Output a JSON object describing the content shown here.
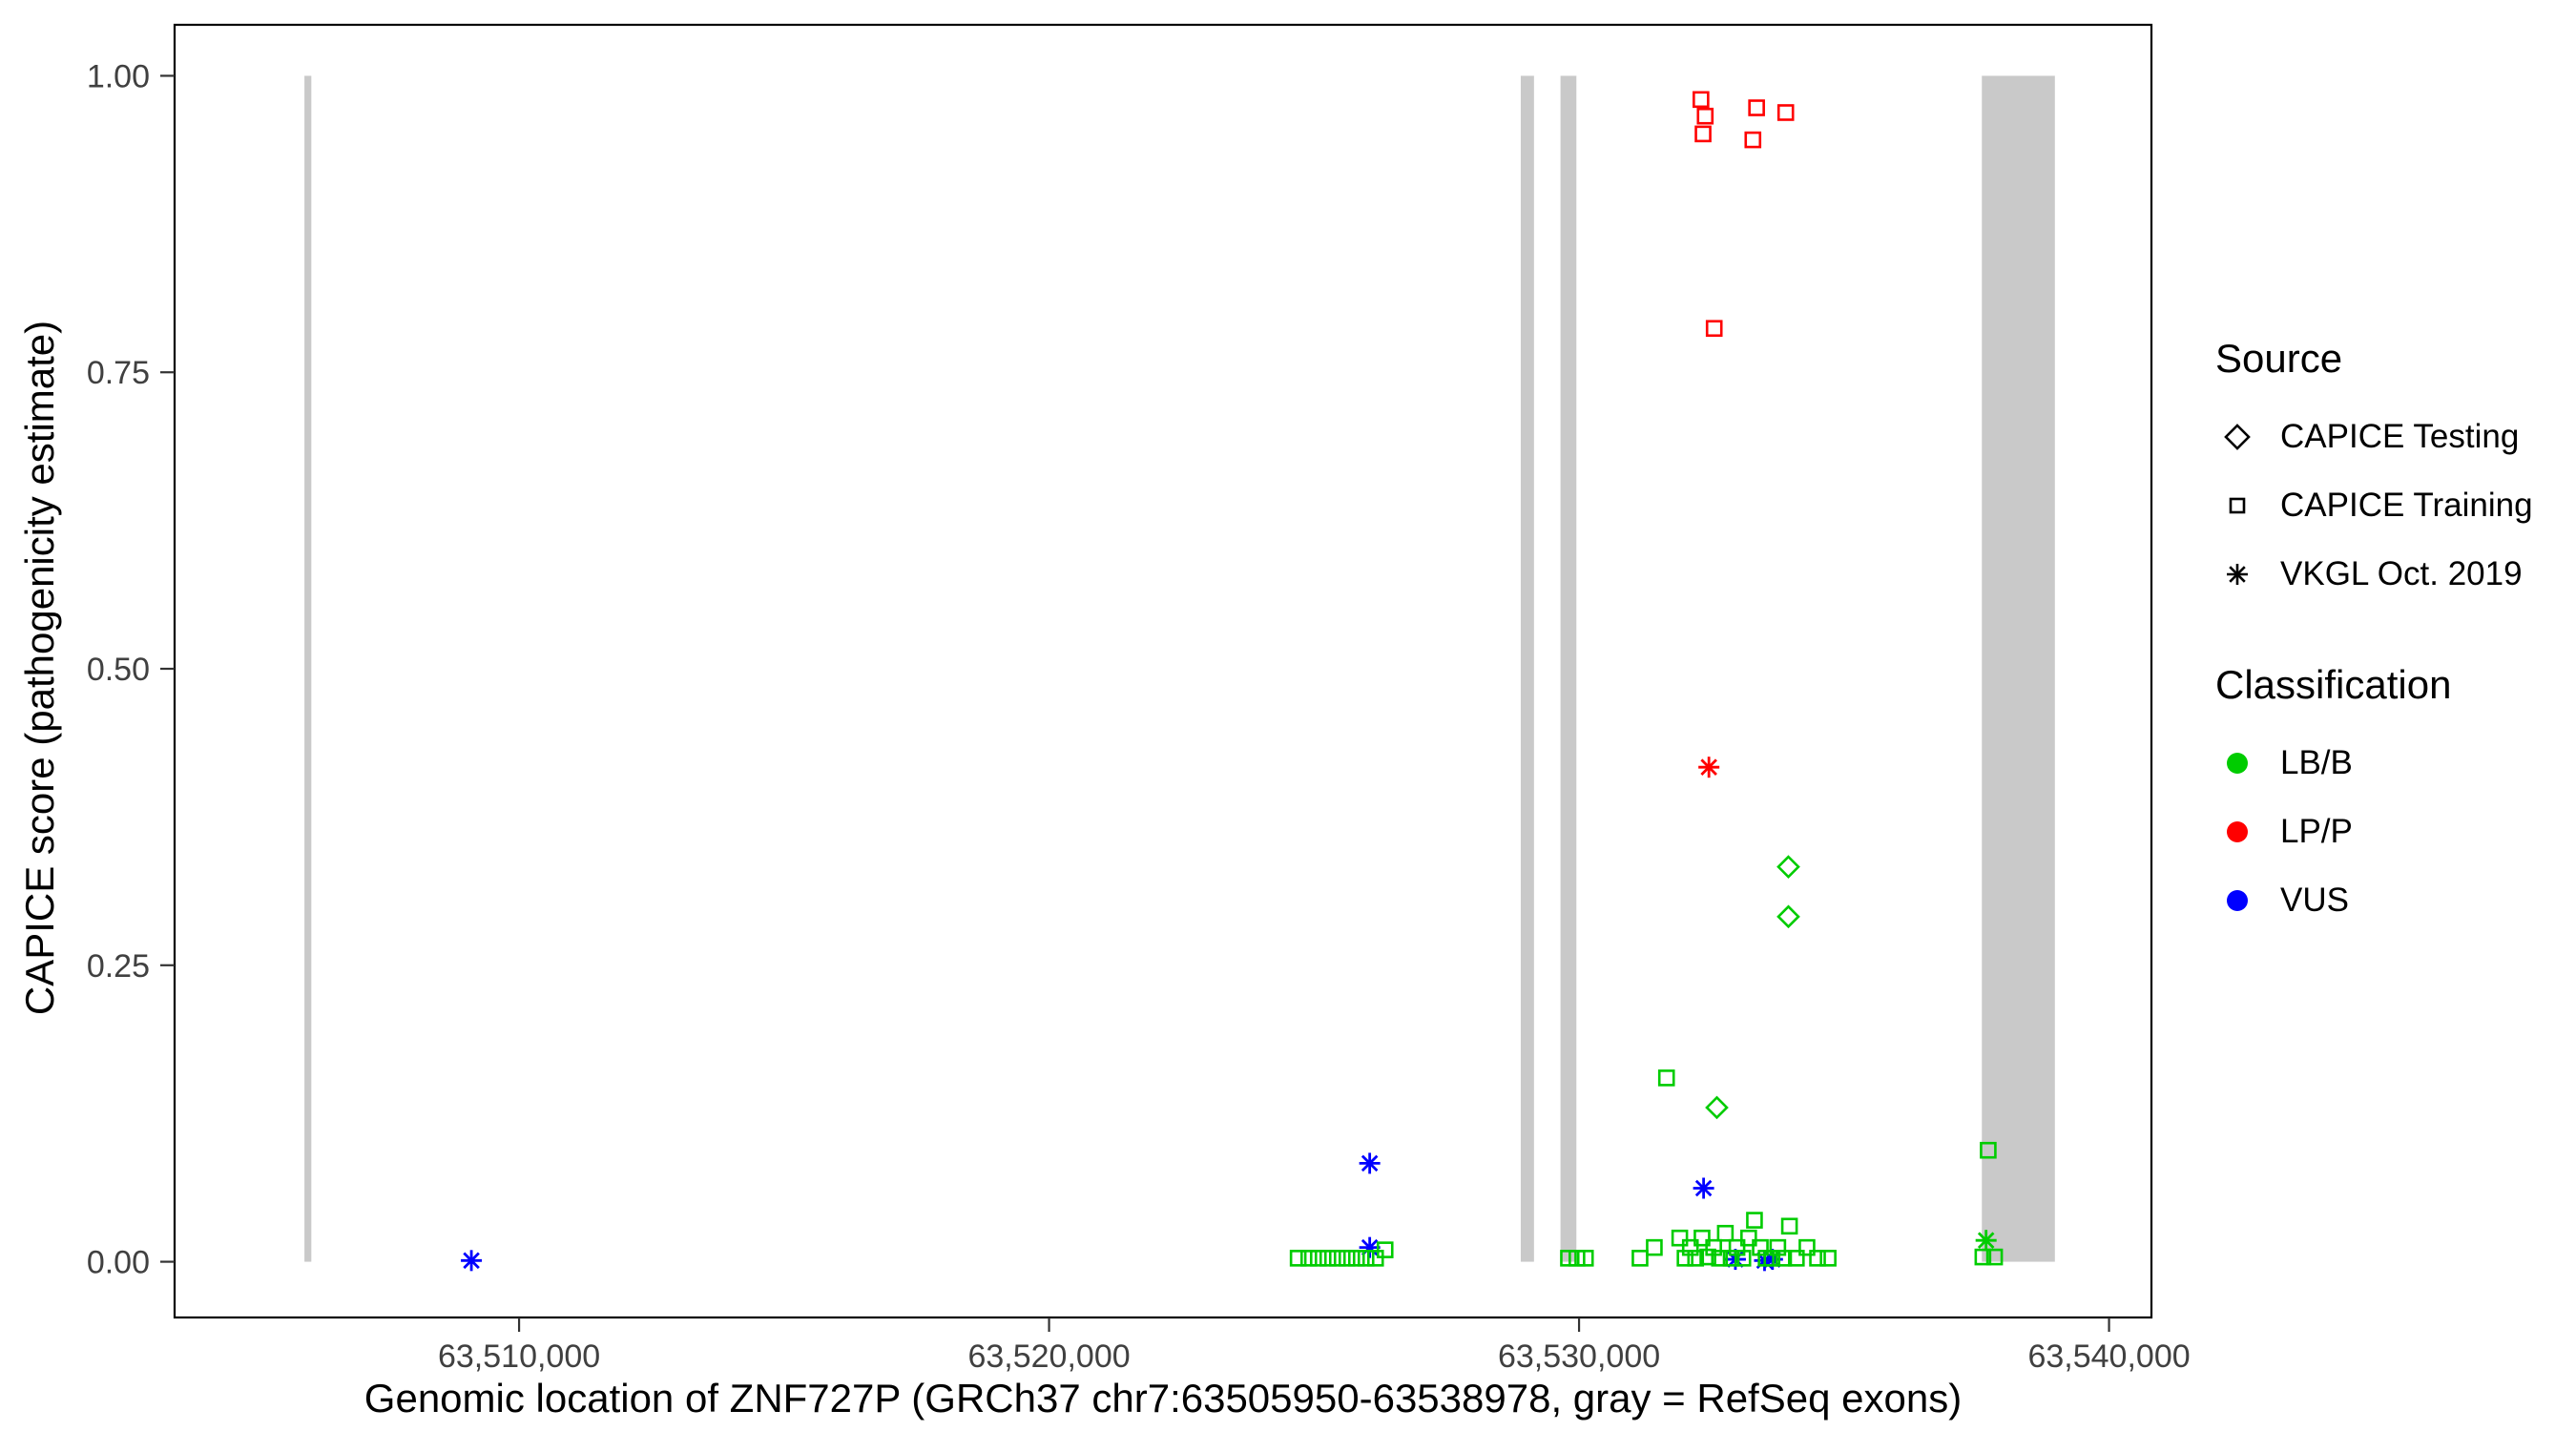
{
  "legend": {
    "source": {
      "title": "Source",
      "items": [
        {
          "label": "CAPICE Testing",
          "shape": "diamond"
        },
        {
          "label": "CAPICE Training",
          "shape": "square"
        },
        {
          "label": "VKGL Oct. 2019",
          "shape": "asterisk"
        }
      ]
    },
    "classification": {
      "title": "Classification",
      "items": [
        {
          "label": "LB/B"
        },
        {
          "label": "LP/P"
        },
        {
          "label": "VUS"
        }
      ]
    }
  },
  "chart_data": {
    "type": "scatter",
    "title": "",
    "xlabel": "Genomic location of ZNF727P (GRCh37 chr7:63505950-63538978, gray = RefSeq exons)",
    "ylabel": "CAPICE score (pathogenicity estimate)",
    "xlim": [
      63503500,
      63540800
    ],
    "ylim": [
      -0.047,
      1.043
    ],
    "grid": false,
    "legend_position": "right",
    "x_ticks": [
      {
        "value": 63510000,
        "label": "63,510,000"
      },
      {
        "value": 63520000,
        "label": "63,520,000"
      },
      {
        "value": 63530000,
        "label": "63,530,000"
      },
      {
        "value": 63540000,
        "label": "63,540,000"
      }
    ],
    "y_ticks": [
      {
        "value": 0.0,
        "label": "0.00"
      },
      {
        "value": 0.25,
        "label": "0.25"
      },
      {
        "value": 0.5,
        "label": "0.50"
      },
      {
        "value": 0.75,
        "label": "0.75"
      },
      {
        "value": 1.0,
        "label": "1.00"
      }
    ],
    "exon_color": "#C9C9C9",
    "exon_y_range": [
      0,
      1
    ],
    "exons": [
      {
        "start": 63505950,
        "end": 63506080
      },
      {
        "start": 63528900,
        "end": 63529150
      },
      {
        "start": 63529650,
        "end": 63529950
      },
      {
        "start": 63537600,
        "end": 63538978
      }
    ],
    "colors": {
      "LB/B": "#00CC00",
      "LP/P": "#FF0000",
      "VUS": "#0000FF"
    },
    "shapes": {
      "CAPICE Testing": "diamond",
      "CAPICE Training": "square",
      "VKGL Oct. 2019": "asterisk"
    },
    "points": [
      {
        "x": 63532300,
        "y": 0.98,
        "source": "CAPICE Training",
        "classification": "LP/P"
      },
      {
        "x": 63532380,
        "y": 0.966,
        "source": "CAPICE Training",
        "classification": "LP/P"
      },
      {
        "x": 63532340,
        "y": 0.951,
        "source": "CAPICE Training",
        "classification": "LP/P"
      },
      {
        "x": 63533350,
        "y": 0.973,
        "source": "CAPICE Training",
        "classification": "LP/P"
      },
      {
        "x": 63533280,
        "y": 0.946,
        "source": "CAPICE Training",
        "classification": "LP/P"
      },
      {
        "x": 63533900,
        "y": 0.969,
        "source": "CAPICE Training",
        "classification": "LP/P"
      },
      {
        "x": 63532550,
        "y": 0.787,
        "source": "CAPICE Training",
        "classification": "LP/P"
      },
      {
        "x": 63532450,
        "y": 0.417,
        "source": "VKGL Oct. 2019",
        "classification": "LP/P"
      },
      {
        "x": 63533950,
        "y": 0.333,
        "source": "CAPICE Testing",
        "classification": "LB/B"
      },
      {
        "x": 63533950,
        "y": 0.291,
        "source": "CAPICE Testing",
        "classification": "LB/B"
      },
      {
        "x": 63532600,
        "y": 0.13,
        "source": "CAPICE Testing",
        "classification": "LB/B"
      },
      {
        "x": 63531650,
        "y": 0.155,
        "source": "CAPICE Training",
        "classification": "LB/B"
      },
      {
        "x": 63537720,
        "y": 0.094,
        "source": "CAPICE Training",
        "classification": "LB/B"
      },
      {
        "x": 63537680,
        "y": 0.018,
        "source": "VKGL Oct. 2019",
        "classification": "LB/B"
      },
      {
        "x": 63509100,
        "y": 0.001,
        "source": "VKGL Oct. 2019",
        "classification": "VUS"
      },
      {
        "x": 63526050,
        "y": 0.083,
        "source": "VKGL Oct. 2019",
        "classification": "VUS"
      },
      {
        "x": 63526050,
        "y": 0.012,
        "source": "VKGL Oct. 2019",
        "classification": "VUS"
      },
      {
        "x": 63532350,
        "y": 0.062,
        "source": "VKGL Oct. 2019",
        "classification": "VUS"
      },
      {
        "x": 63532950,
        "y": 0.002,
        "source": "VKGL Oct. 2019",
        "classification": "VUS"
      },
      {
        "x": 63533500,
        "y": 0.001,
        "source": "VKGL Oct. 2019",
        "classification": "VUS"
      },
      {
        "x": 63533650,
        "y": 0.002,
        "source": "VKGL Oct. 2019",
        "classification": "VUS"
      },
      {
        "x": 63524700,
        "y": 0.003,
        "source": "CAPICE Training",
        "classification": "LB/B"
      },
      {
        "x": 63524900,
        "y": 0.003,
        "source": "CAPICE Training",
        "classification": "LB/B"
      },
      {
        "x": 63525080,
        "y": 0.003,
        "source": "CAPICE Training",
        "classification": "LB/B"
      },
      {
        "x": 63525260,
        "y": 0.003,
        "source": "CAPICE Training",
        "classification": "LB/B"
      },
      {
        "x": 63525440,
        "y": 0.003,
        "source": "CAPICE Training",
        "classification": "LB/B"
      },
      {
        "x": 63525620,
        "y": 0.003,
        "source": "CAPICE Training",
        "classification": "LB/B"
      },
      {
        "x": 63525800,
        "y": 0.003,
        "source": "CAPICE Training",
        "classification": "LB/B"
      },
      {
        "x": 63525980,
        "y": 0.003,
        "source": "CAPICE Training",
        "classification": "LB/B"
      },
      {
        "x": 63526160,
        "y": 0.003,
        "source": "CAPICE Training",
        "classification": "LB/B"
      },
      {
        "x": 63526340,
        "y": 0.01,
        "source": "CAPICE Training",
        "classification": "LB/B"
      },
      {
        "x": 63529800,
        "y": 0.003,
        "source": "CAPICE Training",
        "classification": "LB/B"
      },
      {
        "x": 63529960,
        "y": 0.003,
        "source": "CAPICE Training",
        "classification": "LB/B"
      },
      {
        "x": 63530120,
        "y": 0.003,
        "source": "CAPICE Training",
        "classification": "LB/B"
      },
      {
        "x": 63531150,
        "y": 0.003,
        "source": "CAPICE Training",
        "classification": "LB/B"
      },
      {
        "x": 63531420,
        "y": 0.012,
        "source": "CAPICE Training",
        "classification": "LB/B"
      },
      {
        "x": 63531900,
        "y": 0.02,
        "source": "CAPICE Training",
        "classification": "LB/B"
      },
      {
        "x": 63532000,
        "y": 0.003,
        "source": "CAPICE Training",
        "classification": "LB/B"
      },
      {
        "x": 63532100,
        "y": 0.012,
        "source": "CAPICE Training",
        "classification": "LB/B"
      },
      {
        "x": 63532200,
        "y": 0.003,
        "source": "CAPICE Training",
        "classification": "LB/B"
      },
      {
        "x": 63532320,
        "y": 0.02,
        "source": "CAPICE Training",
        "classification": "LB/B"
      },
      {
        "x": 63532430,
        "y": 0.004,
        "source": "CAPICE Training",
        "classification": "LB/B"
      },
      {
        "x": 63532540,
        "y": 0.012,
        "source": "CAPICE Training",
        "classification": "LB/B"
      },
      {
        "x": 63532650,
        "y": 0.003,
        "source": "CAPICE Training",
        "classification": "LB/B"
      },
      {
        "x": 63532760,
        "y": 0.024,
        "source": "CAPICE Training",
        "classification": "LB/B"
      },
      {
        "x": 63532870,
        "y": 0.003,
        "source": "CAPICE Training",
        "classification": "LB/B"
      },
      {
        "x": 63532980,
        "y": 0.012,
        "source": "CAPICE Training",
        "classification": "LB/B"
      },
      {
        "x": 63533090,
        "y": 0.003,
        "source": "CAPICE Training",
        "classification": "LB/B"
      },
      {
        "x": 63533200,
        "y": 0.02,
        "source": "CAPICE Training",
        "classification": "LB/B"
      },
      {
        "x": 63533310,
        "y": 0.035,
        "source": "CAPICE Training",
        "classification": "LB/B"
      },
      {
        "x": 63533420,
        "y": 0.012,
        "source": "CAPICE Training",
        "classification": "LB/B"
      },
      {
        "x": 63533530,
        "y": 0.003,
        "source": "CAPICE Training",
        "classification": "LB/B"
      },
      {
        "x": 63533640,
        "y": 0.003,
        "source": "CAPICE Training",
        "classification": "LB/B"
      },
      {
        "x": 63533750,
        "y": 0.012,
        "source": "CAPICE Training",
        "classification": "LB/B"
      },
      {
        "x": 63533860,
        "y": 0.003,
        "source": "CAPICE Training",
        "classification": "LB/B"
      },
      {
        "x": 63533970,
        "y": 0.03,
        "source": "CAPICE Training",
        "classification": "LB/B"
      },
      {
        "x": 63534100,
        "y": 0.003,
        "source": "CAPICE Training",
        "classification": "LB/B"
      },
      {
        "x": 63534300,
        "y": 0.012,
        "source": "CAPICE Training",
        "classification": "LB/B"
      },
      {
        "x": 63534500,
        "y": 0.003,
        "source": "CAPICE Training",
        "classification": "LB/B"
      },
      {
        "x": 63534700,
        "y": 0.003,
        "source": "CAPICE Training",
        "classification": "LB/B"
      },
      {
        "x": 63537620,
        "y": 0.004,
        "source": "CAPICE Training",
        "classification": "LB/B"
      },
      {
        "x": 63537840,
        "y": 0.004,
        "source": "CAPICE Training",
        "classification": "LB/B"
      }
    ]
  }
}
